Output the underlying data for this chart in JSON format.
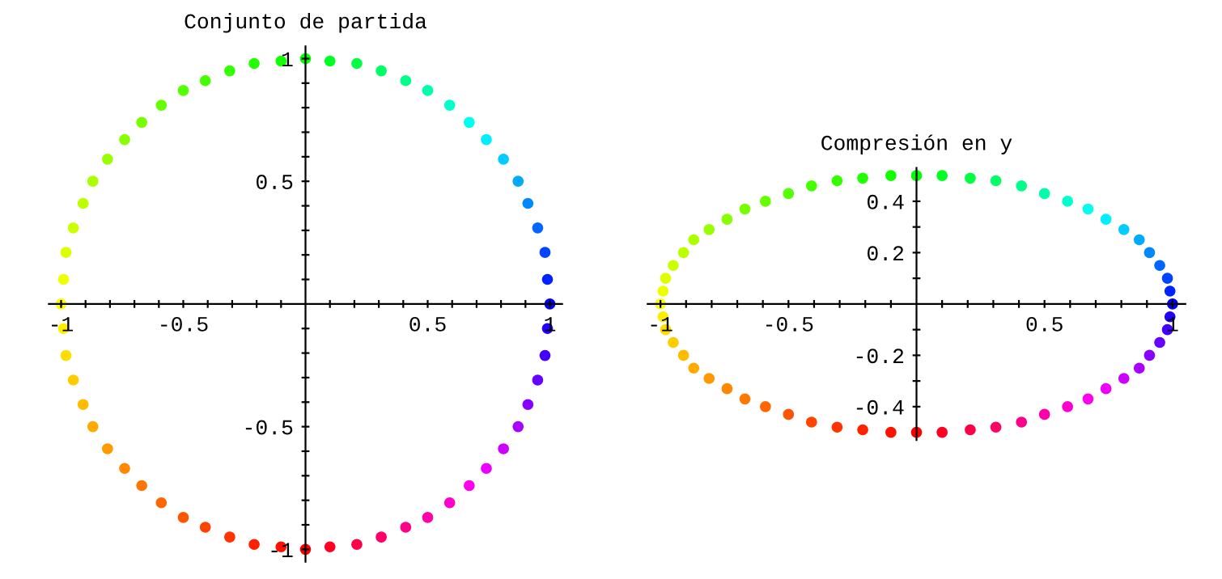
{
  "chart_data": [
    {
      "type": "scatter",
      "title": "Conjunto de partida",
      "marker": "circle",
      "x": [
        1,
        0.99,
        0.98,
        0.95,
        0.91,
        0.87,
        0.81,
        0.74,
        0.67,
        0.59,
        0.5,
        0.41,
        0.31,
        0.21,
        0.1,
        0,
        -0.1,
        -0.21,
        -0.31,
        -0.41,
        -0.5,
        -0.59,
        -0.67,
        -0.74,
        -0.81,
        -0.87,
        -0.91,
        -0.95,
        -0.98,
        -0.99,
        -1,
        -0.99,
        -0.98,
        -0.95,
        -0.91,
        -0.87,
        -0.81,
        -0.74,
        -0.67,
        -0.59,
        -0.5,
        -0.41,
        -0.31,
        -0.21,
        -0.1,
        0,
        0.1,
        0.21,
        0.31,
        0.41,
        0.5,
        0.59,
        0.67,
        0.74,
        0.81,
        0.87,
        0.91,
        0.95,
        0.98,
        0.99
      ],
      "values": [
        0,
        0.1,
        0.21,
        0.31,
        0.41,
        0.5,
        0.59,
        0.67,
        0.74,
        0.81,
        0.87,
        0.91,
        0.95,
        0.98,
        0.99,
        1,
        0.99,
        0.98,
        0.95,
        0.91,
        0.87,
        0.81,
        0.74,
        0.67,
        0.59,
        0.5,
        0.41,
        0.31,
        0.21,
        0.1,
        0,
        -0.1,
        -0.21,
        -0.31,
        -0.41,
        -0.5,
        -0.59,
        -0.67,
        -0.74,
        -0.81,
        -0.87,
        -0.91,
        -0.95,
        -0.98,
        -0.99,
        -1,
        -0.99,
        -0.98,
        -0.95,
        -0.91,
        -0.87,
        -0.81,
        -0.74,
        -0.67,
        -0.59,
        -0.5,
        -0.41,
        -0.31,
        -0.21,
        -0.1
      ],
      "colors": [
        "#0000ff",
        "#0022ff",
        "#0044ff",
        "#0066ff",
        "#0088ff",
        "#00aaff",
        "#00ccff",
        "#00eeff",
        "#00ffee",
        "#00ffcc",
        "#00ffaa",
        "#00ff88",
        "#00ff66",
        "#00ff44",
        "#00ff22",
        "#00ff00",
        "#11ff00",
        "#22ff00",
        "#33ff00",
        "#44ff00",
        "#55ff00",
        "#66ff00",
        "#77ff00",
        "#88ff00",
        "#99ff00",
        "#aaff00",
        "#bbff00",
        "#ccff00",
        "#ddff00",
        "#eeff00",
        "#ffff00",
        "#ffee00",
        "#ffdd00",
        "#ffcc00",
        "#ffbb00",
        "#ffaa00",
        "#ff9900",
        "#ff8800",
        "#ff7700",
        "#ff6600",
        "#ff5500",
        "#ff4400",
        "#ff3300",
        "#ff2200",
        "#ff1100",
        "#ff0000",
        "#ff0022",
        "#ff0044",
        "#ff0066",
        "#ff0088",
        "#ff00aa",
        "#ff00cc",
        "#ff00ee",
        "#ee00ff",
        "#cc00ff",
        "#aa00ff",
        "#8800ff",
        "#6600ff",
        "#4400ff",
        "#2200ff"
      ],
      "xlim": [
        -1.05,
        1.05
      ],
      "ylim": [
        -1.05,
        1.05
      ],
      "xticks": [
        -1,
        {
          "value": -0.9,
          "label": null
        },
        {
          "value": -0.8,
          "label": null
        },
        {
          "value": -0.7,
          "label": null
        },
        {
          "value": -0.6,
          "label": null
        },
        -0.5,
        {
          "value": -0.4,
          "label": null
        },
        {
          "value": -0.3,
          "label": null
        },
        {
          "value": -0.2,
          "label": null
        },
        {
          "value": -0.1,
          "label": null
        },
        {
          "value": 0.1,
          "label": null
        },
        {
          "value": 0.2,
          "label": null
        },
        {
          "value": 0.3,
          "label": null
        },
        {
          "value": 0.4,
          "label": null
        },
        0.5,
        {
          "value": 0.6,
          "label": null
        },
        {
          "value": 0.7,
          "label": null
        },
        {
          "value": 0.8,
          "label": null
        },
        {
          "value": 0.9,
          "label": null
        },
        1
      ],
      "yticks": [
        -1,
        {
          "value": -0.9,
          "label": null
        },
        {
          "value": -0.8,
          "label": null
        },
        {
          "value": -0.7,
          "label": null
        },
        {
          "value": -0.6,
          "label": null
        },
        -0.5,
        {
          "value": -0.4,
          "label": null
        },
        {
          "value": -0.3,
          "label": null
        },
        {
          "value": -0.2,
          "label": null
        },
        {
          "value": -0.1,
          "label": null
        },
        {
          "value": 0.1,
          "label": null
        },
        {
          "value": 0.2,
          "label": null
        },
        {
          "value": 0.3,
          "label": null
        },
        {
          "value": 0.4,
          "label": null
        },
        0.5,
        {
          "value": 0.6,
          "label": null
        },
        {
          "value": 0.7,
          "label": null
        },
        {
          "value": 0.8,
          "label": null
        },
        {
          "value": 0.9,
          "label": null
        },
        1
      ]
    },
    {
      "type": "scatter",
      "title": "Compresión en y",
      "marker": "circle",
      "x": [
        1,
        0.99,
        0.98,
        0.95,
        0.91,
        0.87,
        0.81,
        0.74,
        0.67,
        0.59,
        0.5,
        0.41,
        0.31,
        0.21,
        0.1,
        0,
        -0.1,
        -0.21,
        -0.31,
        -0.41,
        -0.5,
        -0.59,
        -0.67,
        -0.74,
        -0.81,
        -0.87,
        -0.91,
        -0.95,
        -0.98,
        -0.99,
        -1,
        -0.99,
        -0.98,
        -0.95,
        -0.91,
        -0.87,
        -0.81,
        -0.74,
        -0.67,
        -0.59,
        -0.5,
        -0.41,
        -0.31,
        -0.21,
        -0.1,
        0,
        0.1,
        0.21,
        0.31,
        0.41,
        0.5,
        0.59,
        0.67,
        0.74,
        0.81,
        0.87,
        0.91,
        0.95,
        0.98,
        0.99
      ],
      "values": [
        0,
        0.05,
        0.1,
        0.15,
        0.2,
        0.25,
        0.29,
        0.33,
        0.37,
        0.4,
        0.43,
        0.46,
        0.48,
        0.49,
        0.5,
        0.5,
        0.5,
        0.49,
        0.48,
        0.46,
        0.43,
        0.4,
        0.37,
        0.33,
        0.29,
        0.25,
        0.2,
        0.15,
        0.1,
        0.05,
        0,
        -0.05,
        -0.1,
        -0.15,
        -0.2,
        -0.25,
        -0.29,
        -0.33,
        -0.37,
        -0.4,
        -0.43,
        -0.46,
        -0.48,
        -0.49,
        -0.5,
        -0.5,
        -0.5,
        -0.49,
        -0.48,
        -0.46,
        -0.43,
        -0.4,
        -0.37,
        -0.33,
        -0.29,
        -0.25,
        -0.2,
        -0.15,
        -0.1,
        -0.05
      ],
      "colors": [
        "#0000ff",
        "#0022ff",
        "#0044ff",
        "#0066ff",
        "#0088ff",
        "#00aaff",
        "#00ccff",
        "#00eeff",
        "#00ffee",
        "#00ffcc",
        "#00ffaa",
        "#00ff88",
        "#00ff66",
        "#00ff44",
        "#00ff22",
        "#00ff00",
        "#11ff00",
        "#22ff00",
        "#33ff00",
        "#44ff00",
        "#55ff00",
        "#66ff00",
        "#77ff00",
        "#88ff00",
        "#99ff00",
        "#aaff00",
        "#bbff00",
        "#ccff00",
        "#ddff00",
        "#eeff00",
        "#ffff00",
        "#ffee00",
        "#ffdd00",
        "#ffcc00",
        "#ffbb00",
        "#ffaa00",
        "#ff9900",
        "#ff8800",
        "#ff7700",
        "#ff6600",
        "#ff5500",
        "#ff4400",
        "#ff3300",
        "#ff2200",
        "#ff1100",
        "#ff0000",
        "#ff0022",
        "#ff0044",
        "#ff0066",
        "#ff0088",
        "#ff00aa",
        "#ff00cc",
        "#ff00ee",
        "#ee00ff",
        "#cc00ff",
        "#aa00ff",
        "#8800ff",
        "#6600ff",
        "#4400ff",
        "#2200ff"
      ],
      "xlim": [
        -1.05,
        1.05
      ],
      "ylim": [
        -0.53,
        0.53
      ],
      "xticks": [
        -1,
        {
          "value": -0.9,
          "label": null
        },
        {
          "value": -0.8,
          "label": null
        },
        {
          "value": -0.7,
          "label": null
        },
        {
          "value": -0.6,
          "label": null
        },
        -0.5,
        {
          "value": -0.4,
          "label": null
        },
        {
          "value": -0.3,
          "label": null
        },
        {
          "value": -0.2,
          "label": null
        },
        {
          "value": -0.1,
          "label": null
        },
        {
          "value": 0.1,
          "label": null
        },
        {
          "value": 0.2,
          "label": null
        },
        {
          "value": 0.3,
          "label": null
        },
        {
          "value": 0.4,
          "label": null
        },
        0.5,
        {
          "value": 0.6,
          "label": null
        },
        {
          "value": 0.7,
          "label": null
        },
        {
          "value": 0.8,
          "label": null
        },
        {
          "value": 0.9,
          "label": null
        },
        1
      ],
      "yticks": [
        -0.4,
        {
          "value": -0.3,
          "label": null
        },
        -0.2,
        {
          "value": -0.1,
          "label": null
        },
        {
          "value": 0.1,
          "label": null
        },
        0.2,
        {
          "value": 0.3,
          "label": null
        },
        0.4
      ]
    }
  ]
}
